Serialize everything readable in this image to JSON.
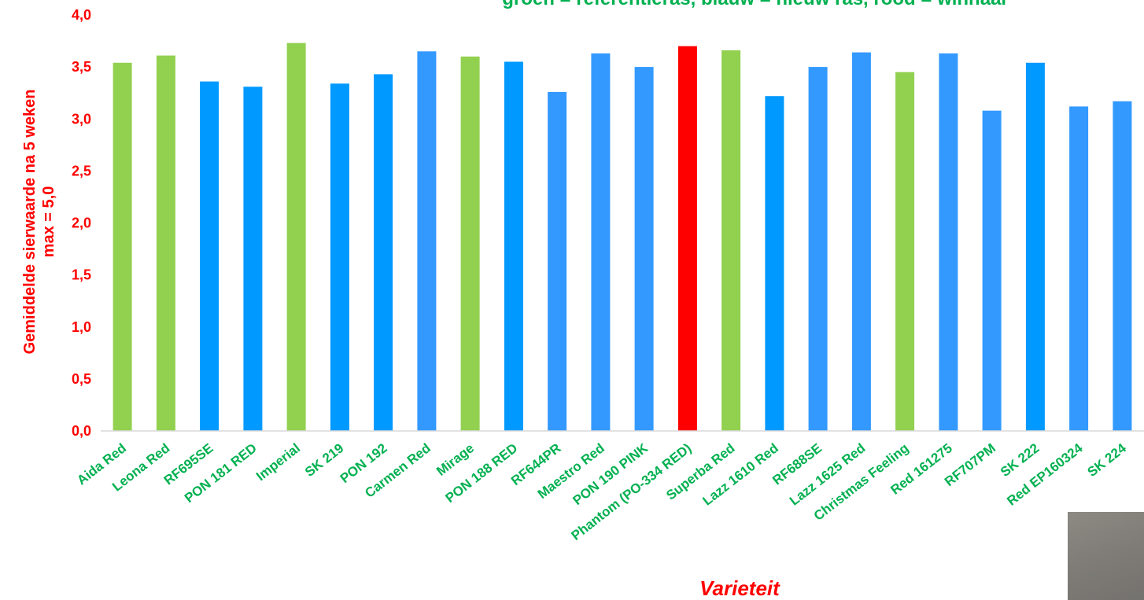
{
  "chart_data": {
    "type": "bar",
    "title": "groen = referentieras, blauw = nieuw ras, rood = winnaar",
    "ylabel_line1": "Gemiddelde sierwaarde na 5 weken",
    "ylabel_line2": "max = 5,0",
    "xlabel": "Varieteit",
    "ylim": [
      0,
      4
    ],
    "yticks": [
      "0,0",
      "0,5",
      "1,0",
      "1,5",
      "2,0",
      "2,5",
      "3,0",
      "3,5",
      "4,0"
    ],
    "categories": [
      "Aida Red",
      "Leona Red",
      "RF695SE",
      "PON 181 RED",
      "Imperial",
      "SK 219",
      "PON 192",
      "Carmen Red",
      "Mirage",
      "PON 188 RED",
      "RF644PR",
      "Maestro Red",
      "PON 190 PINK",
      "Phantom (PO-334 RED)",
      "Superba Red",
      "Lazz 1610 Red",
      "RF688SE",
      "Lazz 1625 Red",
      "Christmas Feeling",
      "Red 161275",
      "RF707PM",
      "SK 222",
      "Red EP160324",
      "SK 224"
    ],
    "values": [
      3.54,
      3.61,
      3.36,
      3.31,
      3.73,
      3.34,
      3.43,
      3.65,
      3.6,
      3.55,
      3.26,
      3.63,
      3.5,
      3.7,
      3.66,
      3.22,
      3.5,
      3.64,
      3.45,
      3.63,
      3.08,
      3.54,
      3.12,
      3.17
    ],
    "bar_colors": [
      "#92d050",
      "#92d050",
      "#0099ff",
      "#0099ff",
      "#92d050",
      "#0099ff",
      "#0099ff",
      "#3399ff",
      "#92d050",
      "#0099ff",
      "#3399ff",
      "#3399ff",
      "#3399ff",
      "#ff0000",
      "#92d050",
      "#0099ff",
      "#3399ff",
      "#3399ff",
      "#92d050",
      "#3399ff",
      "#3399ff",
      "#0099ff",
      "#3399ff",
      "#3399ff"
    ],
    "grid": false
  },
  "colors": {
    "reference": "#92d050",
    "new": "#0099ff",
    "winner": "#ff0000",
    "label_green": "#00b050",
    "label_red": "#ff0000"
  }
}
